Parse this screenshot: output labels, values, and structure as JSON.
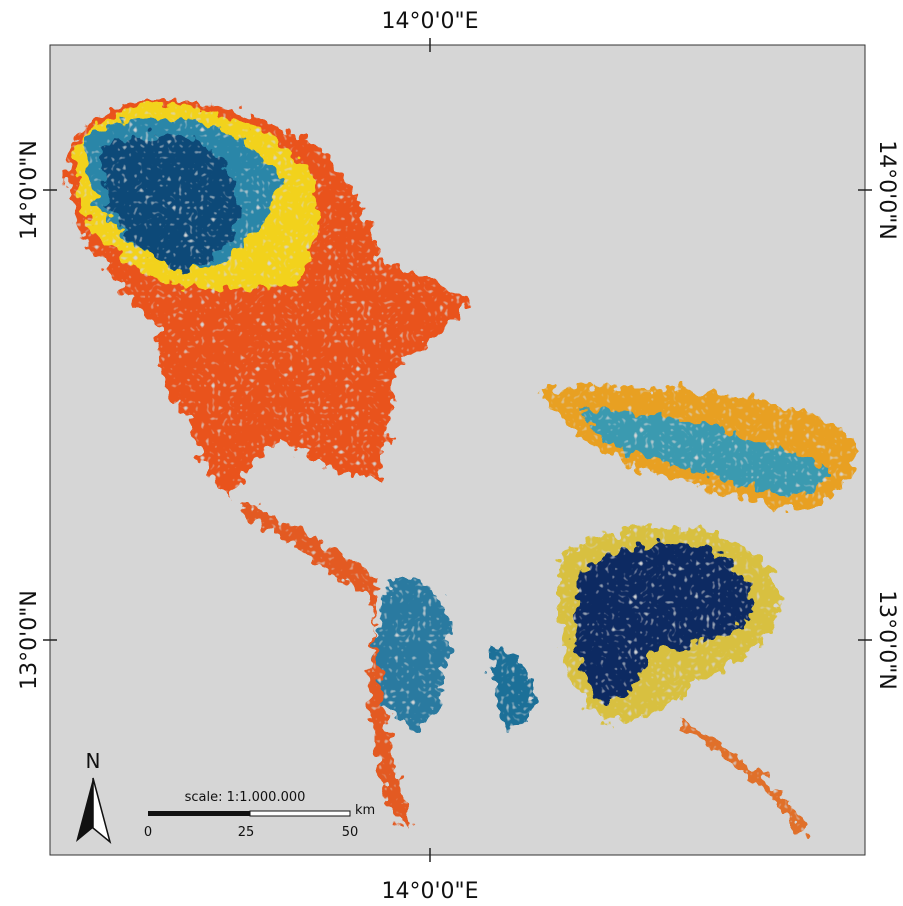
{
  "map": {
    "graticule": {
      "top_longitude": "14°0'0\"E",
      "bottom_longitude": "14°0'0\"E",
      "left_upper_latitude": "14°0'0\"N",
      "left_lower_latitude": "13°0'0\"N",
      "right_upper_latitude": "14°0'0\"N",
      "right_lower_latitude": "13°0'0\"N"
    },
    "north_arrow": "N",
    "scale_bar": {
      "title": "scale: 1:1.000.000",
      "labels": [
        "0",
        "25",
        "50"
      ],
      "unit": "km"
    }
  }
}
